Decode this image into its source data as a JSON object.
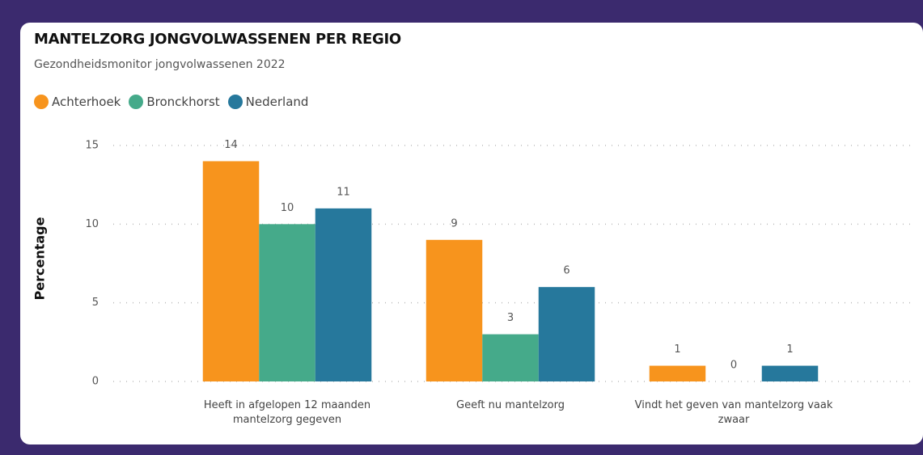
{
  "chart_data": {
    "type": "bar",
    "title": "MANTELZORG JONGVOLWASSENEN PER REGIO",
    "subtitle": "Gezondheidsmonitor jongvolwassenen 2022",
    "y_label": "Percentage",
    "categories": [
      "Heeft in afgelopen 12 maanden mantelzorg gegeven",
      "Geeft nu mantelzorg",
      "Vindt het geven van mantelzorg vaak zwaar"
    ],
    "series": [
      {
        "name": "Achterhoek",
        "color": "#f7941d",
        "values": [
          14,
          9,
          1
        ]
      },
      {
        "name": "Bronckhorst",
        "color": "#45aa8a",
        "values": [
          10,
          3,
          0
        ]
      },
      {
        "name": "Nederland",
        "color": "#26789c",
        "values": [
          11,
          6,
          1
        ]
      }
    ],
    "ylim": [
      0,
      15
    ],
    "yticks": [
      0,
      5,
      10,
      15
    ],
    "grid": true,
    "legend": "top-left"
  }
}
